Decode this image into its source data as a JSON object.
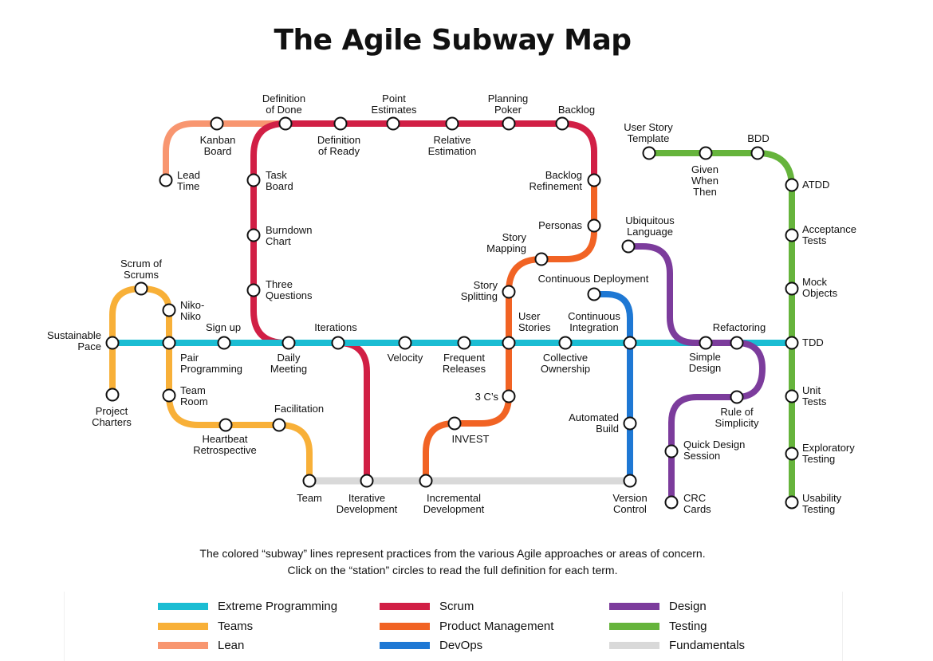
{
  "title": "The Agile Subway Map",
  "caption": {
    "line1": "The colored “subway” lines represent practices from the various Agile approaches or areas of concern.",
    "line2": "Click on the “station” circles to read the full definition for each term."
  },
  "colors": {
    "xp": "#1bbdd3",
    "teams": "#f8b038",
    "lean": "#f89670",
    "scrum": "#d11f45",
    "product": "#f16324",
    "devops": "#1e78d4",
    "design": "#7c3c9c",
    "testing": "#66b43c",
    "fundamentals": "#d9d9d9"
  },
  "legend": [
    {
      "key": "xp",
      "label": "Extreme Programming"
    },
    {
      "key": "teams",
      "label": "Teams"
    },
    {
      "key": "lean",
      "label": "Lean"
    },
    {
      "key": "scrum",
      "label": "Scrum"
    },
    {
      "key": "product",
      "label": "Product Management"
    },
    {
      "key": "devops",
      "label": "DevOps"
    },
    {
      "key": "design",
      "label": "Design"
    },
    {
      "key": "testing",
      "label": "Testing"
    },
    {
      "key": "fundamentals",
      "label": "Fundamentals"
    }
  ],
  "stations": [
    {
      "id": "sustainable-pace",
      "lines": [
        "Sustainable",
        "Pace"
      ]
    },
    {
      "id": "scrum-of-scrums",
      "lines": [
        "Scrum of",
        "Scrums"
      ]
    },
    {
      "id": "niko-niko",
      "lines": [
        "Niko-",
        "Niko"
      ]
    },
    {
      "id": "sign-up",
      "lines": [
        "Sign up"
      ]
    },
    {
      "id": "pair-programming",
      "lines": [
        "Pair",
        "Programming"
      ]
    },
    {
      "id": "team-room",
      "lines": [
        "Team",
        "Room"
      ]
    },
    {
      "id": "project-charters",
      "lines": [
        "Project",
        "Charters"
      ]
    },
    {
      "id": "heartbeat-retrospective",
      "lines": [
        "Heartbeat",
        "Retrospective"
      ]
    },
    {
      "id": "facilitation",
      "lines": [
        "Facilitation"
      ]
    },
    {
      "id": "team",
      "lines": [
        "Team"
      ]
    },
    {
      "id": "kanban-board",
      "lines": [
        "Kanban",
        "Board"
      ]
    },
    {
      "id": "lead-time",
      "lines": [
        "Lead",
        "Time"
      ]
    },
    {
      "id": "definition-of-done",
      "lines": [
        "Definition",
        "of Done"
      ]
    },
    {
      "id": "definition-of-ready",
      "lines": [
        "Definition",
        "of Ready"
      ]
    },
    {
      "id": "point-estimates",
      "lines": [
        "Point",
        "Estimates"
      ]
    },
    {
      "id": "relative-estimation",
      "lines": [
        "Relative",
        "Estimation"
      ]
    },
    {
      "id": "planning-poker",
      "lines": [
        "Planning",
        "Poker"
      ]
    },
    {
      "id": "backlog",
      "lines": [
        "Backlog"
      ]
    },
    {
      "id": "task-board",
      "lines": [
        "Task",
        "Board"
      ]
    },
    {
      "id": "burndown-chart",
      "lines": [
        "Burndown",
        "Chart"
      ]
    },
    {
      "id": "three-questions",
      "lines": [
        "Three",
        "Questions"
      ]
    },
    {
      "id": "daily-meeting",
      "lines": [
        "Daily",
        "Meeting"
      ]
    },
    {
      "id": "iterations",
      "lines": [
        "Iterations"
      ]
    },
    {
      "id": "iterative-development",
      "lines": [
        "Iterative",
        "Development"
      ]
    },
    {
      "id": "velocity",
      "lines": [
        "Velocity"
      ]
    },
    {
      "id": "frequent-releases",
      "lines": [
        "Frequent",
        "Releases"
      ]
    },
    {
      "id": "backlog-refinement",
      "lines": [
        "Backlog",
        "Refinement"
      ]
    },
    {
      "id": "personas",
      "lines": [
        "Personas"
      ]
    },
    {
      "id": "story-mapping",
      "lines": [
        "Story",
        "Mapping"
      ]
    },
    {
      "id": "story-splitting",
      "lines": [
        "Story",
        "Splitting"
      ]
    },
    {
      "id": "user-stories",
      "lines": [
        "User",
        "Stories"
      ]
    },
    {
      "id": "three-cs",
      "lines": [
        "3 C’s"
      ]
    },
    {
      "id": "invest",
      "lines": [
        "INVEST"
      ]
    },
    {
      "id": "incremental-development",
      "lines": [
        "Incremental",
        "Development"
      ]
    },
    {
      "id": "continuous-deployment",
      "lines": [
        "Continuous Deployment"
      ]
    },
    {
      "id": "collective-ownership",
      "lines": [
        "Collective",
        "Ownership"
      ]
    },
    {
      "id": "continuous-integration",
      "lines": [
        "Continuous",
        "Integration"
      ]
    },
    {
      "id": "automated-build",
      "lines": [
        "Automated",
        "Build"
      ]
    },
    {
      "id": "version-control",
      "lines": [
        "Version",
        "Control"
      ]
    },
    {
      "id": "ubiquitous-language",
      "lines": [
        "Ubiquitous",
        "Language"
      ]
    },
    {
      "id": "simple-design",
      "lines": [
        "Simple",
        "Design"
      ]
    },
    {
      "id": "refactoring",
      "lines": [
        "Refactoring"
      ]
    },
    {
      "id": "rule-of-simplicity",
      "lines": [
        "Rule of",
        "Simplicity"
      ]
    },
    {
      "id": "quick-design-session",
      "lines": [
        "Quick Design",
        "Session"
      ]
    },
    {
      "id": "crc-cards",
      "lines": [
        "CRC",
        "Cards"
      ]
    },
    {
      "id": "user-story-template",
      "lines": [
        "User Story",
        "Template"
      ]
    },
    {
      "id": "given-when-then",
      "lines": [
        "Given",
        "When",
        "Then"
      ]
    },
    {
      "id": "bdd",
      "lines": [
        "BDD"
      ]
    },
    {
      "id": "atdd",
      "lines": [
        "ATDD"
      ]
    },
    {
      "id": "acceptance-tests",
      "lines": [
        "Acceptance",
        "Tests"
      ]
    },
    {
      "id": "mock-objects",
      "lines": [
        "Mock",
        "Objects"
      ]
    },
    {
      "id": "tdd",
      "lines": [
        "TDD"
      ]
    },
    {
      "id": "unit-tests",
      "lines": [
        "Unit",
        "Tests"
      ]
    },
    {
      "id": "exploratory-testing",
      "lines": [
        "Exploratory",
        "Testing"
      ]
    },
    {
      "id": "usability-testing",
      "lines": [
        "Usability",
        "Testing"
      ]
    }
  ]
}
